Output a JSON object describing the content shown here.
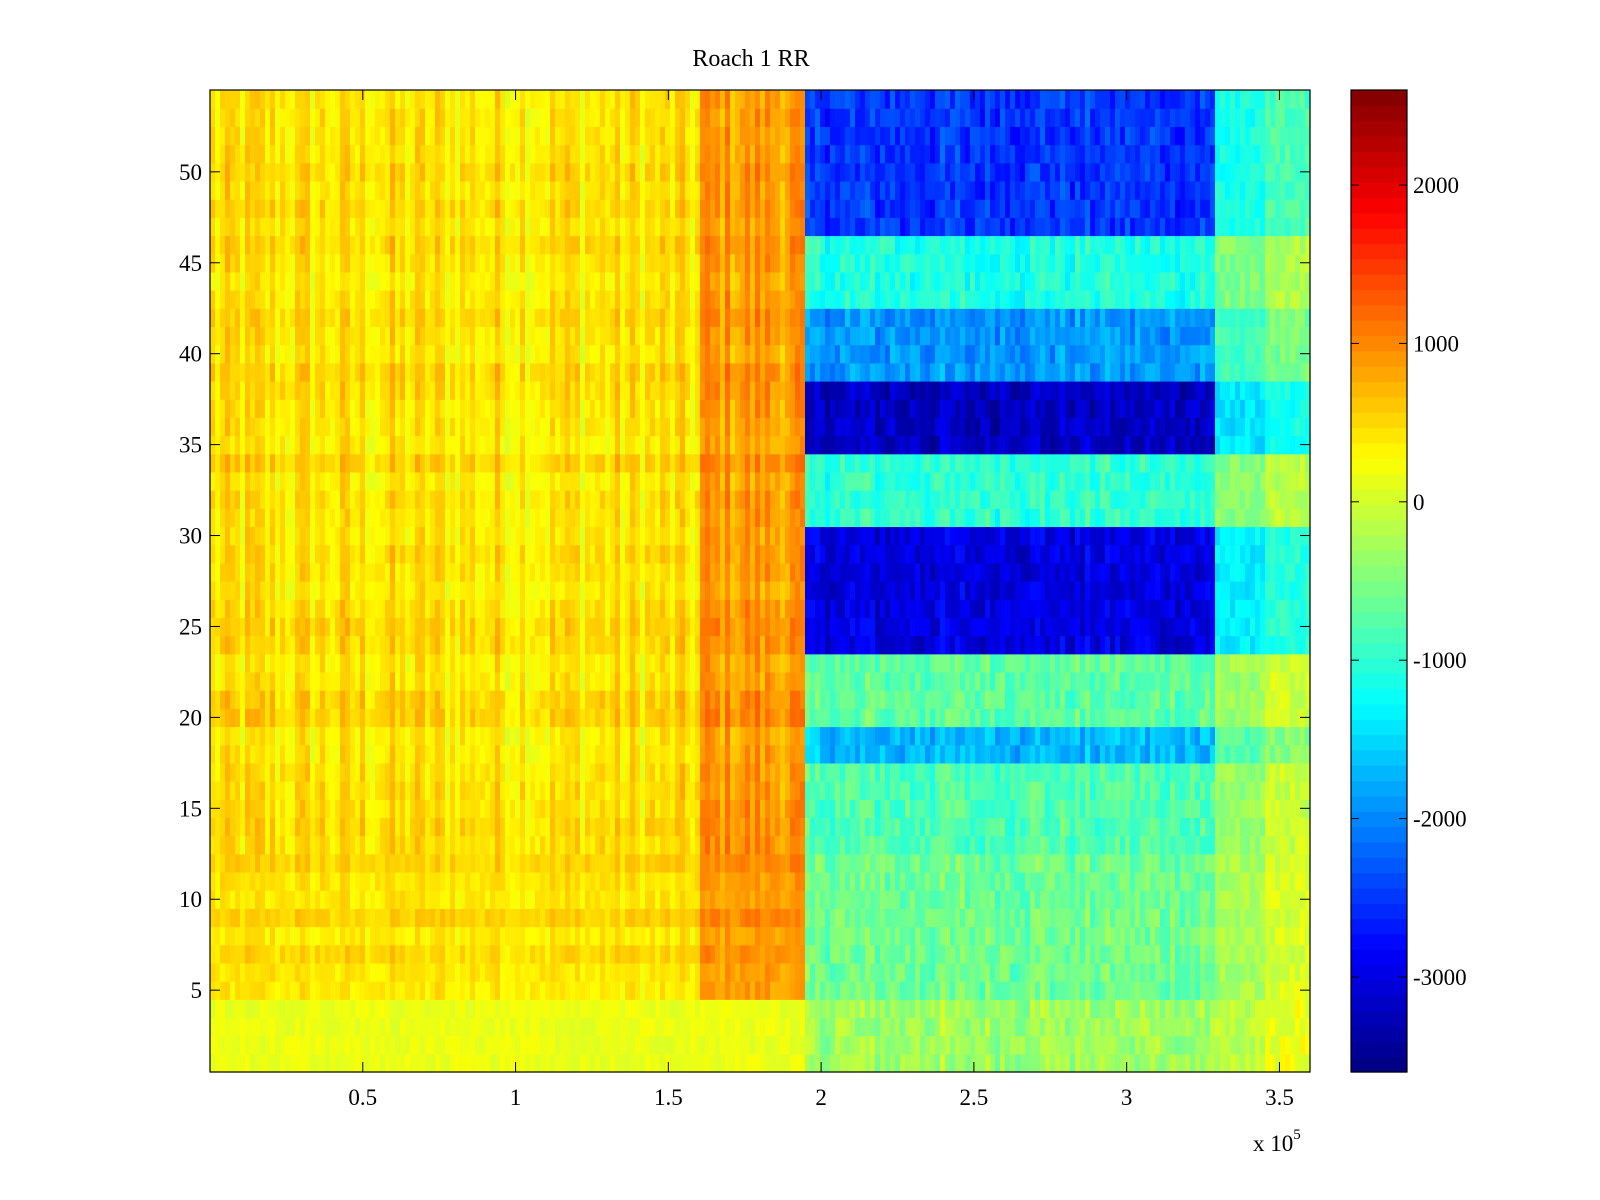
{
  "chart_data": {
    "type": "heatmap",
    "title": "Roach 1 RR",
    "xlabel": "",
    "ylabel": "",
    "x_exponent_label": "x 10",
    "x_exponent_power": "5",
    "xlim": [
      0,
      360000
    ],
    "ylim": [
      0.5,
      54.5
    ],
    "x_ticks": [
      {
        "value": 50000,
        "label": "0.5"
      },
      {
        "value": 100000,
        "label": "1"
      },
      {
        "value": 150000,
        "label": "1.5"
      },
      {
        "value": 200000,
        "label": "2"
      },
      {
        "value": 250000,
        "label": "2.5"
      },
      {
        "value": 300000,
        "label": "3"
      },
      {
        "value": 350000,
        "label": "3.5"
      }
    ],
    "y_ticks": [
      {
        "value": 5,
        "label": "5"
      },
      {
        "value": 10,
        "label": "10"
      },
      {
        "value": 15,
        "label": "15"
      },
      {
        "value": 20,
        "label": "20"
      },
      {
        "value": 25,
        "label": "25"
      },
      {
        "value": 30,
        "label": "30"
      },
      {
        "value": 35,
        "label": "35"
      },
      {
        "value": 40,
        "label": "40"
      },
      {
        "value": 45,
        "label": "45"
      },
      {
        "value": 50,
        "label": "50"
      }
    ],
    "colorbar": {
      "colormap": "jet",
      "clim": [
        -3600,
        2600
      ],
      "ticks": [
        {
          "value": 2000,
          "label": "2000"
        },
        {
          "value": 1000,
          "label": "1000"
        },
        {
          "value": 0,
          "label": "0"
        },
        {
          "value": -1000,
          "label": "-1000"
        },
        {
          "value": -2000,
          "label": "-2000"
        },
        {
          "value": -3000,
          "label": "-3000"
        }
      ]
    },
    "rows": 54,
    "x_segments": [
      {
        "x_start": 0,
        "x_end": 160000,
        "level": 450
      },
      {
        "x_start": 160000,
        "x_end": 194000,
        "level": 900
      },
      {
        "x_start": 194000,
        "x_end": 329000,
        "level": -1500
      },
      {
        "x_start": 329000,
        "x_end": 360000,
        "level": -600
      }
    ],
    "row_bands": [
      {
        "y_start": 0.5,
        "y_end": 4.5,
        "level": -300
      },
      {
        "y_start": 4.5,
        "y_end": 12.5,
        "level": -600
      },
      {
        "y_start": 12.5,
        "y_end": 17.5,
        "level": -800
      },
      {
        "y_start": 17.5,
        "y_end": 19.5,
        "level": -1700
      },
      {
        "y_start": 19.5,
        "y_end": 23.5,
        "level": -700
      },
      {
        "y_start": 23.5,
        "y_end": 30.5,
        "level": -3000
      },
      {
        "y_start": 30.5,
        "y_end": 34.5,
        "level": -1000
      },
      {
        "y_start": 34.5,
        "y_end": 38.5,
        "level": -3200
      },
      {
        "y_start": 38.5,
        "y_end": 42.5,
        "level": -1900
      },
      {
        "y_start": 42.5,
        "y_end": 46.5,
        "level": -1100
      },
      {
        "y_start": 46.5,
        "y_end": 54.5,
        "level": -2500
      }
    ]
  }
}
